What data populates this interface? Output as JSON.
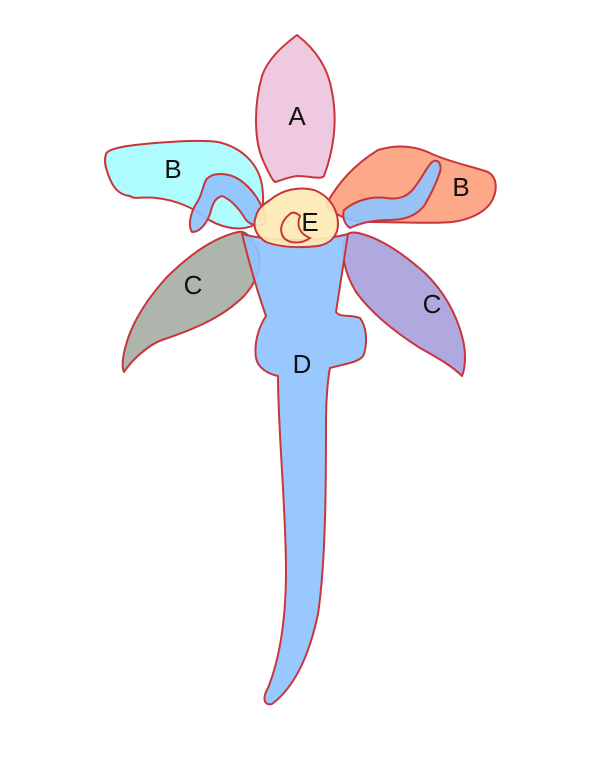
{
  "labels": {
    "a": "A",
    "b_left": "B",
    "b_right": "B",
    "c_left": "C",
    "c_right": "C",
    "d": "D",
    "e": "E"
  },
  "colors": {
    "outline": "#c8363b",
    "part_a": "#edc4dc",
    "part_b_left": "#a7fcfd",
    "part_b_right": "#fda17f",
    "part_c_left": "#a6afa6",
    "part_c_right": "#a8a2dd",
    "part_d": "#8fc3fd",
    "part_e": "#fdeab3"
  }
}
